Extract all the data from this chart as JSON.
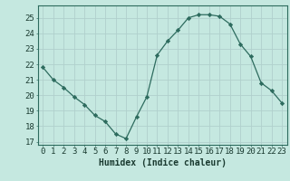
{
  "x": [
    0,
    1,
    2,
    3,
    4,
    5,
    6,
    7,
    8,
    9,
    10,
    11,
    12,
    13,
    14,
    15,
    16,
    17,
    18,
    19,
    20,
    21,
    22,
    23
  ],
  "y": [
    21.8,
    21.0,
    20.5,
    19.9,
    19.4,
    18.7,
    18.3,
    17.5,
    17.2,
    18.6,
    19.9,
    22.6,
    23.5,
    24.2,
    25.0,
    25.2,
    25.2,
    25.1,
    24.6,
    23.3,
    22.5,
    20.8,
    20.3,
    19.5
  ],
  "line_color": "#2d6b5e",
  "marker": "D",
  "marker_size": 2.2,
  "bg_color": "#c5e8e0",
  "grid_color": "#b0d0cc",
  "xlabel": "Humidex (Indice chaleur)",
  "xlabel_fontsize": 7,
  "tick_fontsize": 6.5,
  "ylim": [
    16.8,
    25.8
  ],
  "xlim": [
    -0.5,
    23.5
  ],
  "yticks": [
    17,
    18,
    19,
    20,
    21,
    22,
    23,
    24,
    25
  ],
  "xticks": [
    0,
    1,
    2,
    3,
    4,
    5,
    6,
    7,
    8,
    9,
    10,
    11,
    12,
    13,
    14,
    15,
    16,
    17,
    18,
    19,
    20,
    21,
    22,
    23
  ]
}
